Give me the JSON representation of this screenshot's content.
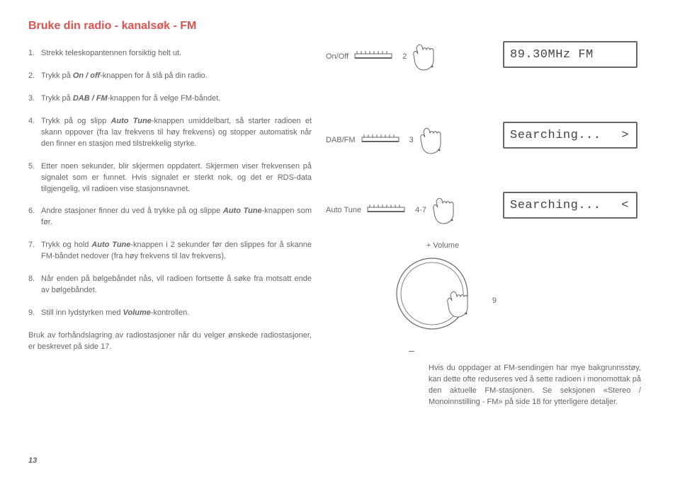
{
  "title": "Bruke din radio - kanalsøk - FM",
  "steps": [
    {
      "num": "1.",
      "html": "Strekk teleskopantennen forsiktig helt ut."
    },
    {
      "num": "2.",
      "html": "Trykk på <em>On / off</em>-knappen for å slå på din radio."
    },
    {
      "num": "3.",
      "html": "Trykk på <em>DAB / FM</em>-knappen for å velge FM-båndet."
    },
    {
      "num": "4.",
      "html": "Trykk på og slipp <em>Auto Tune</em>-knappen umiddelbart, så starter radioen et skann oppover (fra lav frekvens til høy frekvens) og stopper automatisk når den finner en stasjon med tilstrekkelig styrke."
    },
    {
      "num": "5.",
      "html": "Etter noen sekunder, blir skjermen oppdatert. Skjermen viser frekvensen på signalet som er funnet. Hvis signalet er sterkt nok, og det er RDS-data tilgjengelig, vil radioen vise stasjonsnavnet."
    },
    {
      "num": "6.",
      "html": "Andre stasjoner finner du ved å trykke på og slippe <em>Auto Tune</em>-knappen som før."
    },
    {
      "num": "7.",
      "html": "Trykk og hold <em>Auto Tune</em>-knappen i 2 sekunder før den slippes for å skanne FM-båndet nedover (fra høy frekvens til lav frekvens)."
    },
    {
      "num": "8.",
      "html": "Når enden på bølgebåndet nås, vil radioen fortsette å søke fra motsatt ende av bølgebåndet."
    },
    {
      "num": "9.",
      "html": "Still inn lydstyrken med <em>Volume</em>-kontrollen."
    }
  ],
  "left_note": "Bruk av forhåndslagring av radiostasjoner når du velger ønskede radiostasjoner, er beskrevet på side 17.",
  "page_number": "13",
  "buttons": {
    "onoff": {
      "label": "On/Off",
      "num": "2"
    },
    "dabfm": {
      "label": "DAB/FM",
      "num": "3"
    },
    "autotune": {
      "label": "Auto Tune",
      "num": "4-7"
    }
  },
  "volume": {
    "plus": "+ Volume",
    "minus": "–",
    "num": "9"
  },
  "lcd": {
    "freq": "89.30MHz  FM",
    "search_right": "Searching...",
    "search_left": "Searching..."
  },
  "right_note": "Hvis du oppdager at FM-sendingen har mye bakgrunnsstøy, kan dette ofte reduseres ved å sette radioen i monomottak på den aktuelle FM-stasjonen. Se seksjonen «Stereo / Monoinnstilling - FM» på side 18 for ytterligere detaljer.",
  "colors": {
    "title": "#d9534f",
    "text": "#666666",
    "stroke": "#666666"
  }
}
